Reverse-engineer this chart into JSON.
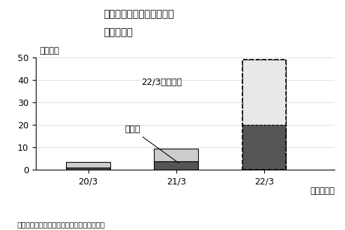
{
  "title_line1": "地域共創モデルの売上高と",
  "title_line2": "粗利益推移",
  "categories": [
    "20/3",
    "21/3",
    "22/3"
  ],
  "gross_profit": [
    1.0,
    4.0,
    20.0
  ],
  "revenue_above_gp": [
    2.5,
    5.5,
    29.0
  ],
  "ylim": [
    0,
    50
  ],
  "yticks": [
    0,
    10,
    20,
    30,
    40,
    50
  ],
  "ylabel": "（億円）",
  "xlabel": "（年／月）",
  "bar_color_dark": "#555555",
  "bar_color_light": "#cccccc",
  "bar_color_forecast_light": "#e8e8e8",
  "annotation_text1": "22/3は見通し",
  "annotation_text2": "粗利益",
  "note": "（注）ディスクロージャー誌などを基に作成",
  "background_color": "#ffffff",
  "bar_width": 0.5
}
